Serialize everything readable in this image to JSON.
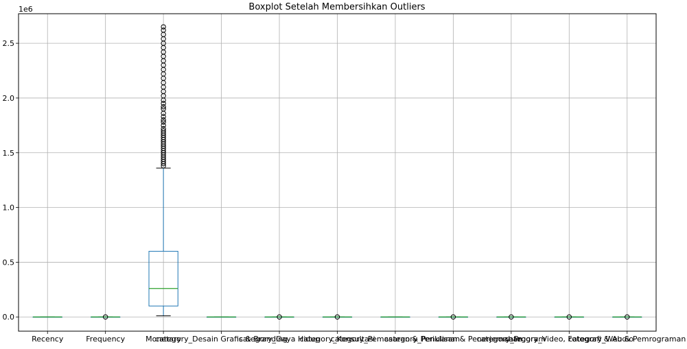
{
  "chart_data": {
    "type": "boxplot",
    "title": "Boxplot Setelah Membersihkan Outliers",
    "y_offset_label": "1e6",
    "ylim": [
      -0.13,
      2.77
    ],
    "yticks": [
      0.0,
      0.5,
      1.0,
      1.5,
      2.0,
      2.5
    ],
    "ytick_labels": [
      "0.0",
      "0.5",
      "1.0",
      "1.5",
      "2.0",
      "2.5"
    ],
    "grid": true,
    "categories": [
      "Recency",
      "Frequency",
      "Monetary",
      "category_Desain Grafis & Branding",
      "category_Gaya Hidup",
      "category_Konsultasi",
      "category_Pemasaran & Periklanan",
      "category_Penulisan & Penerjemahan",
      "category_Program",
      "category_Video, Fotografi & Audio",
      "category_Web & Pemrograman"
    ],
    "boxes": [
      {
        "name": "Recency",
        "whislo": 0,
        "q1": 0,
        "med": 0,
        "q3": 0,
        "whishi": 0,
        "fliers": []
      },
      {
        "name": "Frequency",
        "whislo": 0,
        "q1": 0,
        "med": 0,
        "q3": 0,
        "whishi": 0,
        "fliers": [
          0.0
        ]
      },
      {
        "name": "Monetary",
        "whislo": 0.01,
        "q1": 0.1,
        "med": 0.26,
        "q3": 0.6,
        "whishi": 1.36,
        "fliers": [
          1.38,
          1.4,
          1.42,
          1.44,
          1.46,
          1.48,
          1.5,
          1.52,
          1.54,
          1.56,
          1.58,
          1.6,
          1.62,
          1.64,
          1.66,
          1.68,
          1.7,
          1.72,
          1.75,
          1.78,
          1.8,
          1.83,
          1.86,
          1.9,
          1.92,
          1.95,
          1.98,
          2.02,
          2.06,
          2.1,
          2.14,
          2.18,
          2.22,
          2.26,
          2.3,
          2.34,
          2.38,
          2.42,
          2.46,
          2.5,
          2.54,
          2.58,
          2.62,
          2.65
        ]
      },
      {
        "name": "category_Desain Grafis & Branding",
        "whislo": 0,
        "q1": 0,
        "med": 0,
        "q3": 0,
        "whishi": 0,
        "fliers": []
      },
      {
        "name": "category_Gaya Hidup",
        "whislo": 0,
        "q1": 0,
        "med": 0,
        "q3": 0,
        "whishi": 0,
        "fliers": [
          0.0
        ]
      },
      {
        "name": "category_Konsultasi",
        "whislo": 0,
        "q1": 0,
        "med": 0,
        "q3": 0,
        "whishi": 0,
        "fliers": [
          0.0
        ]
      },
      {
        "name": "category_Pemasaran & Periklanan",
        "whislo": 0,
        "q1": 0,
        "med": 0,
        "q3": 0,
        "whishi": 0,
        "fliers": []
      },
      {
        "name": "category_Penulisan & Penerjemahan",
        "whislo": 0,
        "q1": 0,
        "med": 0,
        "q3": 0,
        "whishi": 0,
        "fliers": [
          0.0
        ]
      },
      {
        "name": "category_Program",
        "whislo": 0,
        "q1": 0,
        "med": 0,
        "q3": 0,
        "whishi": 0,
        "fliers": [
          0.0
        ]
      },
      {
        "name": "category_Video, Fotografi & Audio",
        "whislo": 0,
        "q1": 0,
        "med": 0,
        "q3": 0,
        "whishi": 0,
        "fliers": [
          0.0
        ]
      },
      {
        "name": "category_Web & Pemrograman",
        "whislo": 0,
        "q1": 0,
        "med": 0,
        "q3": 0,
        "whishi": 0,
        "fliers": [
          0.0
        ]
      }
    ],
    "colors": {
      "box": "#1f77b4",
      "median": "#2ca02c",
      "whisker": "#000000",
      "grid": "#b0b0b0",
      "axes": "#000000"
    }
  }
}
